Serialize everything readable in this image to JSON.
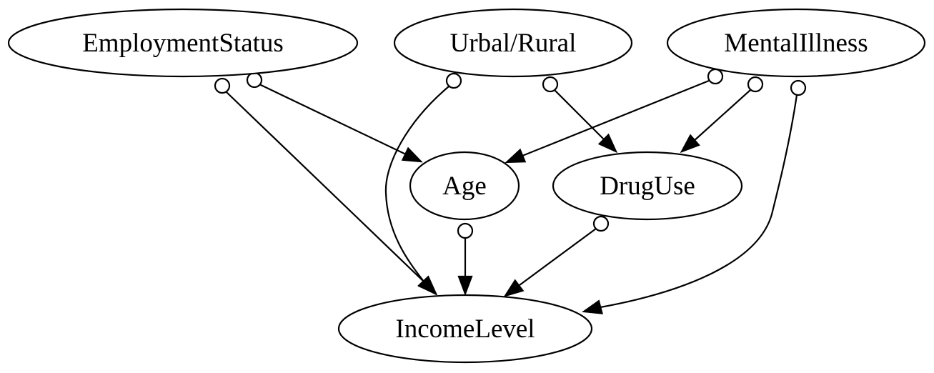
{
  "diagram": {
    "type": "causal-graph",
    "nodes": [
      {
        "id": "employment",
        "label": "EmploymentStatus"
      },
      {
        "id": "urban",
        "label": "Urbal/Rural"
      },
      {
        "id": "mental",
        "label": "MentalIllness"
      },
      {
        "id": "age",
        "label": "Age"
      },
      {
        "id": "drug",
        "label": "DrugUse"
      },
      {
        "id": "income",
        "label": "IncomeLevel"
      }
    ],
    "edges": [
      {
        "from": "employment",
        "to": "income",
        "tail": "circle",
        "head": "arrow"
      },
      {
        "from": "employment",
        "to": "age",
        "tail": "circle",
        "head": "arrow"
      },
      {
        "from": "urban",
        "to": "income",
        "tail": "circle",
        "head": "arrow"
      },
      {
        "from": "urban",
        "to": "drug",
        "tail": "circle",
        "head": "arrow"
      },
      {
        "from": "mental",
        "to": "age",
        "tail": "circle",
        "head": "arrow"
      },
      {
        "from": "mental",
        "to": "drug",
        "tail": "circle",
        "head": "arrow"
      },
      {
        "from": "mental",
        "to": "income",
        "tail": "circle",
        "head": "arrow"
      },
      {
        "from": "age",
        "to": "income",
        "tail": "circle",
        "head": "arrow"
      },
      {
        "from": "drug",
        "to": "income",
        "tail": "circle",
        "head": "arrow"
      }
    ]
  }
}
